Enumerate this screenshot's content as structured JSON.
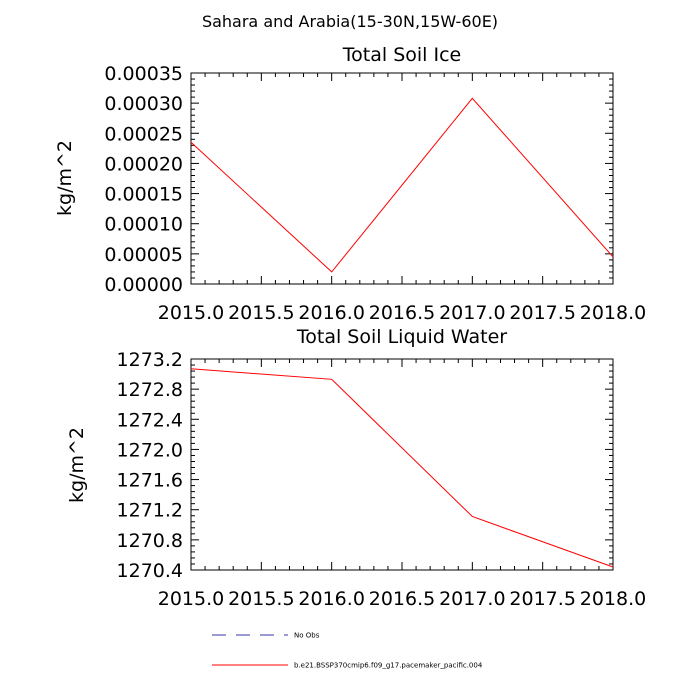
{
  "chart_data": [
    {
      "type": "line",
      "title": "Total Soil Ice",
      "xlabel": "",
      "ylabel": "kg/m^2",
      "xlim": [
        2015.0,
        2018.0
      ],
      "ylim": [
        0.0,
        0.00035
      ],
      "x_ticks": [
        "2015.0",
        "2015.5",
        "2016.0",
        "2016.5",
        "2017.0",
        "2017.5",
        "2018.0"
      ],
      "y_ticks": [
        "0.00000",
        "0.00005",
        "0.00010",
        "0.00015",
        "0.00020",
        "0.00025",
        "0.00030",
        "0.00035"
      ],
      "x": [
        2015.0,
        2016.0,
        2017.0,
        2018.0
      ],
      "series": [
        {
          "name": "b.e21.BSSP370cmip6.f09_g17.pacemaker_pacific.004",
          "color": "#ff0000",
          "values": [
            0.000235,
            2e-05,
            0.000308,
            4.5e-05
          ]
        }
      ],
      "grid": false
    },
    {
      "type": "line",
      "title": "Total Soil Liquid Water",
      "xlabel": "",
      "ylabel": "kg/m^2",
      "xlim": [
        2015.0,
        2018.0
      ],
      "ylim": [
        1270.4,
        1273.2
      ],
      "x_ticks": [
        "2015.0",
        "2015.5",
        "2016.0",
        "2016.5",
        "2017.0",
        "2017.5",
        "2018.0"
      ],
      "y_ticks": [
        "1270.4",
        "1270.8",
        "1271.2",
        "1271.6",
        "1272.0",
        "1272.4",
        "1272.8",
        "1273.2"
      ],
      "x": [
        2015.0,
        2016.0,
        2017.0,
        2018.0
      ],
      "series": [
        {
          "name": "b.e21.BSSP370cmip6.f09_g17.pacemaker_pacific.004",
          "color": "#ff0000",
          "values": [
            1273.07,
            1272.93,
            1271.11,
            1270.44
          ]
        }
      ],
      "grid": false
    }
  ],
  "figure_title": "Sahara and Arabia(15-30N,15W-60E)",
  "legend": [
    {
      "label": "No Obs",
      "color": "#3333aa",
      "style": "dashed"
    },
    {
      "label": "b.e21.BSSP370cmip6.f09_g17.pacemaker_pacific.004",
      "color": "#ff0000",
      "style": "solid"
    }
  ]
}
